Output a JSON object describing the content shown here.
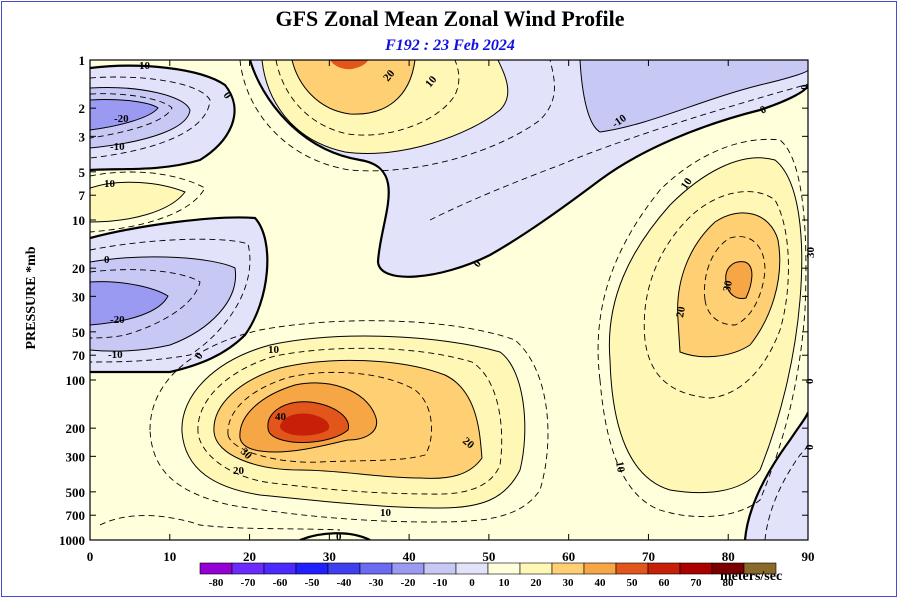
{
  "title": "GFS Zonal Mean Zonal Wind Profile",
  "subtitle": "F192 : 23 Feb 2024",
  "chart_data": {
    "type": "contour",
    "xlabel": "",
    "ylabel": "PRESSURE *mb",
    "xlim": [
      0,
      90
    ],
    "x_ticks": [
      0,
      10,
      20,
      30,
      40,
      50,
      60,
      70,
      80,
      90
    ],
    "y_scale": "log",
    "y_ticks": [
      1,
      2,
      3,
      5,
      7,
      10,
      20,
      30,
      50,
      70,
      100,
      200,
      300,
      500,
      700,
      1000
    ],
    "y_direction": "pressure increasing downward",
    "contour_interval": 5,
    "labeled_contours": [
      -20,
      -10,
      0,
      10,
      20,
      30,
      40
    ],
    "features": [
      {
        "label": "40",
        "x": 28,
        "p": 200,
        "kind": "jet maximum (subtropical)"
      },
      {
        "label": "30",
        "x": 80,
        "p": 30,
        "kind": "jet maximum (polar night)"
      },
      {
        "label": "20",
        "x": 30,
        "p": 1,
        "kind": "westerly maximum"
      },
      {
        "label": "-20",
        "x": 3,
        "p": 2,
        "kind": "easterly minimum"
      },
      {
        "label": "-20",
        "x": 3,
        "p": 35,
        "kind": "easterly minimum"
      },
      {
        "label": "-10",
        "x": 66,
        "p": 2.5,
        "kind": "easterly region"
      }
    ],
    "colorbar": {
      "levels": [
        -80,
        -70,
        -60,
        -50,
        -40,
        -30,
        -20,
        -10,
        0,
        10,
        20,
        30,
        40,
        50,
        60,
        70,
        80
      ],
      "colors": [
        "#9400d3",
        "#6b2bff",
        "#4a2aff",
        "#2020ff",
        "#3f3ff0",
        "#6a6af2",
        "#9a9af2",
        "#c8c8f5",
        "#e2e2fb",
        "#ffffdc",
        "#fff7b6",
        "#ffcf73",
        "#f7a646",
        "#e3561b",
        "#c62009",
        "#aa0000",
        "#7a0000",
        "#8a6a2a"
      ],
      "units": "meters/sec"
    }
  }
}
